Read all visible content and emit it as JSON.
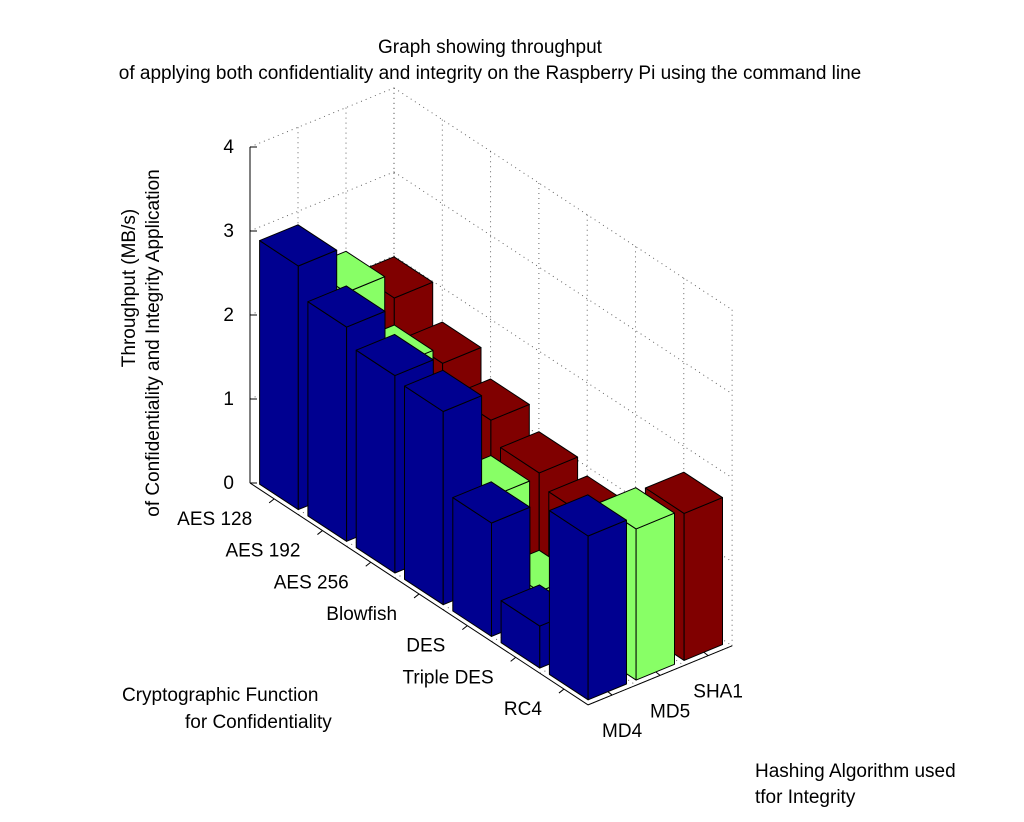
{
  "chart_data": {
    "type": "bar",
    "title_lines": [
      "Graph showing throughput",
      "of applying both confidentiality and integrity on the Raspberry Pi using the command line"
    ],
    "zlabel_lines": [
      "Throughput (MB/s)",
      "of Confidentiality and Integrity Application"
    ],
    "xlabel_lines": [
      "Cryptographic Function",
      "for Confidentiality"
    ],
    "ylabel_lines": [
      "Hashing Algorithm used",
      "tfor Integrity"
    ],
    "categories": [
      "AES 128",
      "AES 192",
      "AES 256",
      "Blowfish",
      "DES",
      "Triple DES",
      "RC4"
    ],
    "depth_categories": [
      "MD4",
      "MD5",
      "SHA1"
    ],
    "series": [
      {
        "name": "MD4",
        "color": "#000090",
        "values": [
          2.9,
          2.55,
          2.35,
          2.3,
          1.35,
          0.5,
          1.95
        ]
      },
      {
        "name": "MD5",
        "color": "#88ff66",
        "values": [
          2.35,
          1.85,
          1.35,
          1.05,
          0.3,
          null,
          1.8
        ]
      },
      {
        "name": "SHA1",
        "color": "#800000",
        "values": [
          2.05,
          1.65,
          1.35,
          1.1,
          0.95,
          null,
          1.75
        ]
      }
    ],
    "zlim": [
      0,
      4
    ],
    "zticks": [
      "0",
      "1",
      "2",
      "3",
      "4"
    ],
    "grid": true
  }
}
